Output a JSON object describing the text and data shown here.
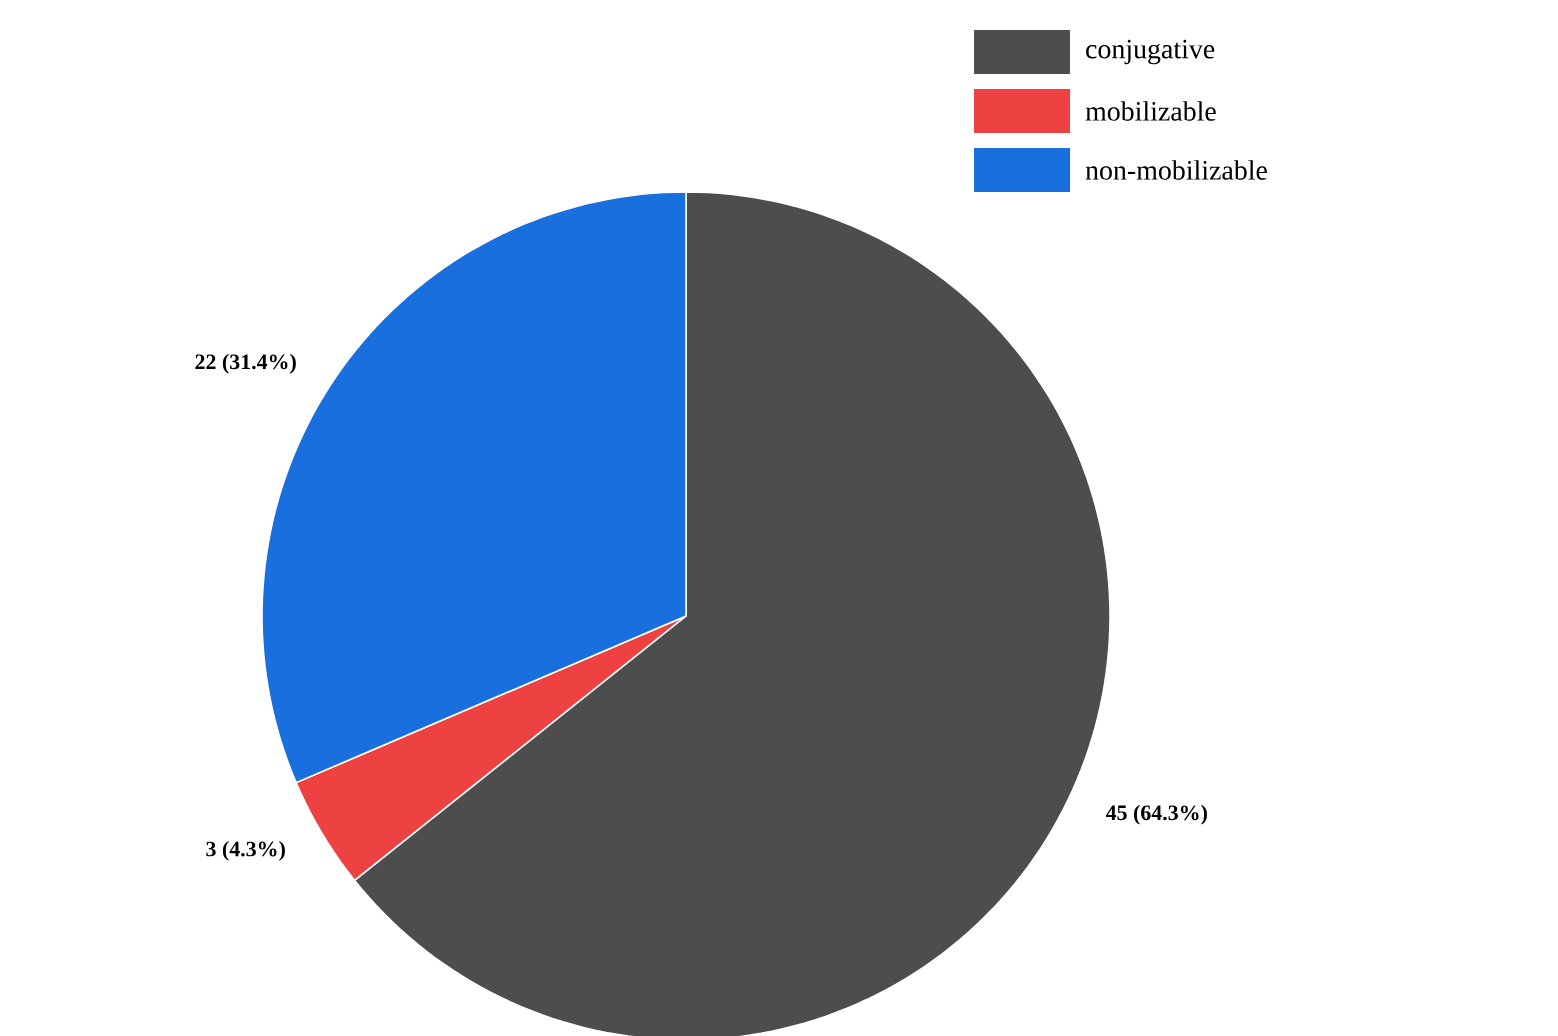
{
  "chart_data": {
    "type": "pie",
    "categories": [
      "conjugative",
      "mobilizable",
      "non-mobilizable"
    ],
    "values": [
      45,
      3,
      22
    ],
    "colors": [
      "#4d4d4d",
      "#ee4242",
      "#1a6fdf"
    ],
    "value_labels": [
      "45 (64.3%)",
      "3 (4.3%)",
      "22 (31.4%)"
    ],
    "legend": "top right"
  }
}
